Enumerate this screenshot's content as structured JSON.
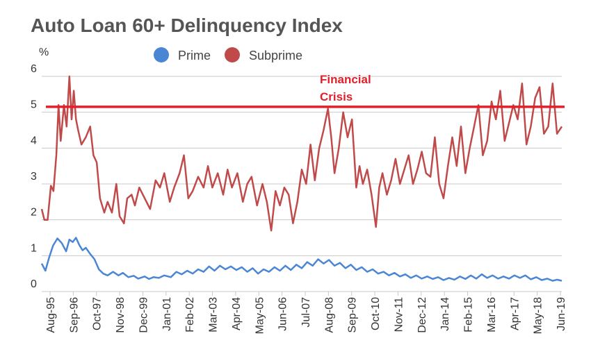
{
  "chart_data": {
    "type": "line",
    "title": "Auto Loan 60+ Delinquency Index",
    "ylabel": "%",
    "ylim": [
      0,
      6
    ],
    "y_ticks": [
      "0",
      "1",
      "2",
      "3",
      "4",
      "5",
      "6"
    ],
    "x_tick_labels": [
      "Aug-95",
      "Sep-96",
      "Oct-97",
      "Nov-98",
      "Dec-99",
      "Jan-01",
      "Feb-02",
      "Mar-03",
      "Apr-04",
      "May-05",
      "Jun-06",
      "Jul-07",
      "Aug-08",
      "Sep-09",
      "Oct-10",
      "Nov-11",
      "Dec-12",
      "Jan-14",
      "Feb-15",
      "Mar-16",
      "Apr-17",
      "May-18",
      "Jun-19"
    ],
    "x_start": 1995.58,
    "x_end": 2019.42,
    "grid": true,
    "legend_position": "top",
    "legend": [
      {
        "name": "Prime",
        "color": "#4a86d4"
      },
      {
        "name": "Subprime",
        "color": "#c04a4a"
      }
    ],
    "reference_line": {
      "value": 5.15,
      "color": "#e0202a",
      "label_line1": "Financial",
      "label_line2": "Crisis"
    },
    "series": [
      {
        "name": "Prime",
        "color": "#4a86d4",
        "x": [
          1995.58,
          1995.75,
          1995.92,
          1996.1,
          1996.3,
          1996.5,
          1996.7,
          1996.85,
          1997.0,
          1997.15,
          1997.3,
          1997.45,
          1997.6,
          1997.8,
          1998.0,
          1998.2,
          1998.4,
          1998.6,
          1998.85,
          1999.1,
          1999.3,
          1999.55,
          1999.8,
          2000.0,
          2000.3,
          2000.5,
          2000.7,
          2000.95,
          2001.2,
          2001.5,
          2001.75,
          2002.0,
          2002.25,
          2002.5,
          2002.75,
          2003.0,
          2003.25,
          2003.5,
          2003.75,
          2004.0,
          2004.25,
          2004.5,
          2004.75,
          2005.0,
          2005.25,
          2005.5,
          2005.75,
          2006.0,
          2006.25,
          2006.5,
          2006.75,
          2007.0,
          2007.25,
          2007.5,
          2007.75,
          2008.0,
          2008.25,
          2008.5,
          2008.75,
          2009.0,
          2009.25,
          2009.5,
          2009.75,
          2010.0,
          2010.25,
          2010.5,
          2010.75,
          2011.0,
          2011.25,
          2011.5,
          2011.75,
          2012.0,
          2012.25,
          2012.5,
          2012.75,
          2013.0,
          2013.25,
          2013.5,
          2013.75,
          2014.0,
          2014.25,
          2014.5,
          2014.75,
          2015.0,
          2015.25,
          2015.5,
          2015.75,
          2016.0,
          2016.25,
          2016.5,
          2016.75,
          2017.0,
          2017.25,
          2017.5,
          2017.75,
          2018.0,
          2018.25,
          2018.5,
          2018.75,
          2019.0,
          2019.2,
          2019.42
        ],
        "values": [
          0.78,
          0.58,
          0.95,
          1.28,
          1.48,
          1.35,
          1.12,
          1.45,
          1.38,
          1.5,
          1.3,
          1.15,
          1.22,
          1.05,
          0.9,
          0.62,
          0.5,
          0.45,
          0.55,
          0.45,
          0.52,
          0.4,
          0.44,
          0.36,
          0.42,
          0.35,
          0.4,
          0.38,
          0.45,
          0.4,
          0.55,
          0.48,
          0.58,
          0.5,
          0.62,
          0.55,
          0.7,
          0.58,
          0.72,
          0.62,
          0.7,
          0.6,
          0.68,
          0.55,
          0.65,
          0.5,
          0.62,
          0.55,
          0.68,
          0.58,
          0.72,
          0.6,
          0.75,
          0.65,
          0.82,
          0.72,
          0.9,
          0.78,
          0.88,
          0.72,
          0.8,
          0.65,
          0.75,
          0.6,
          0.68,
          0.55,
          0.62,
          0.5,
          0.55,
          0.45,
          0.52,
          0.42,
          0.48,
          0.38,
          0.45,
          0.36,
          0.42,
          0.35,
          0.4,
          0.32,
          0.38,
          0.33,
          0.42,
          0.35,
          0.45,
          0.36,
          0.48,
          0.38,
          0.45,
          0.36,
          0.42,
          0.36,
          0.45,
          0.38,
          0.45,
          0.34,
          0.4,
          0.32,
          0.36,
          0.3,
          0.33,
          0.3
        ]
      },
      {
        "name": "Subprime",
        "color": "#c04a4a",
        "x": [
          1995.58,
          1995.7,
          1995.85,
          1996.0,
          1996.12,
          1996.25,
          1996.35,
          1996.45,
          1996.6,
          1996.72,
          1996.85,
          1996.95,
          1997.05,
          1997.15,
          1997.25,
          1997.4,
          1997.6,
          1997.8,
          1997.95,
          1998.1,
          1998.25,
          1998.45,
          1998.6,
          1998.8,
          1999.0,
          1999.15,
          1999.35,
          1999.5,
          1999.7,
          1999.85,
          2000.05,
          2000.3,
          2000.55,
          2000.8,
          2001.0,
          2001.2,
          2001.45,
          2001.65,
          2001.9,
          2002.1,
          2002.3,
          2002.5,
          2002.75,
          2003.0,
          2003.2,
          2003.4,
          2003.65,
          2003.9,
          2004.1,
          2004.3,
          2004.55,
          2004.8,
          2005.0,
          2005.2,
          2005.45,
          2005.7,
          2005.9,
          2006.1,
          2006.3,
          2006.5,
          2006.7,
          2006.9,
          2007.1,
          2007.3,
          2007.5,
          2007.7,
          2007.9,
          2008.1,
          2008.3,
          2008.5,
          2008.7,
          2008.85,
          2009.0,
          2009.2,
          2009.4,
          2009.6,
          2009.8,
          2010.0,
          2010.15,
          2010.3,
          2010.5,
          2010.7,
          2010.9,
          2011.05,
          2011.2,
          2011.4,
          2011.6,
          2011.8,
          2012.0,
          2012.2,
          2012.4,
          2012.6,
          2012.8,
          2013.0,
          2013.2,
          2013.4,
          2013.6,
          2013.8,
          2014.0,
          2014.2,
          2014.4,
          2014.6,
          2014.8,
          2015.0,
          2015.2,
          2015.4,
          2015.6,
          2015.8,
          2016.0,
          2016.2,
          2016.4,
          2016.6,
          2016.8,
          2017.0,
          2017.2,
          2017.4,
          2017.6,
          2017.8,
          2018.0,
          2018.2,
          2018.4,
          2018.6,
          2018.8,
          2019.0,
          2019.2,
          2019.42
        ],
        "values": [
          2.3,
          2.0,
          2.0,
          2.95,
          2.8,
          3.8,
          5.2,
          4.2,
          5.2,
          4.6,
          6.0,
          4.8,
          5.6,
          4.8,
          4.5,
          4.1,
          4.3,
          4.6,
          3.8,
          3.6,
          2.6,
          2.2,
          2.5,
          2.2,
          3.0,
          2.1,
          1.9,
          2.6,
          2.7,
          2.4,
          2.9,
          2.6,
          2.3,
          3.1,
          2.9,
          3.3,
          2.5,
          2.9,
          3.3,
          3.8,
          2.6,
          2.8,
          3.2,
          2.9,
          3.5,
          2.9,
          3.3,
          2.7,
          3.4,
          2.9,
          3.3,
          2.5,
          3.0,
          3.2,
          2.4,
          3.0,
          2.5,
          1.7,
          2.8,
          2.4,
          2.9,
          2.7,
          1.9,
          2.5,
          3.4,
          3.0,
          4.1,
          3.1,
          4.0,
          4.5,
          5.1,
          4.3,
          3.3,
          4.0,
          5.0,
          4.3,
          4.8,
          2.9,
          3.5,
          3.0,
          3.4,
          2.7,
          1.8,
          2.9,
          3.3,
          2.7,
          3.1,
          3.7,
          3.0,
          3.4,
          3.8,
          3.0,
          3.4,
          3.9,
          3.3,
          3.2,
          4.3,
          3.0,
          2.6,
          3.5,
          4.3,
          3.5,
          4.6,
          3.3,
          4.0,
          4.6,
          5.2,
          3.8,
          4.2,
          5.3,
          4.8,
          5.6,
          4.2,
          4.7,
          5.2,
          4.8,
          5.8,
          4.1,
          4.6,
          5.4,
          5.7,
          4.4,
          4.6,
          5.8,
          4.4,
          4.6
        ]
      }
    ]
  }
}
